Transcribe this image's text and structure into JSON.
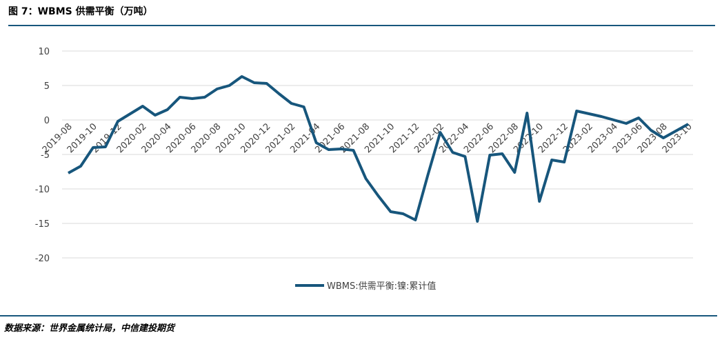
{
  "chart_data": {
    "type": "line",
    "title": "图 7：WBMS 供需平衡（万吨）",
    "categories": [
      "2019-08",
      null,
      "2019-10",
      null,
      "2019-12",
      null,
      "2020-02",
      null,
      "2020-04",
      null,
      "2020-06",
      null,
      "2020-08",
      null,
      "2020-10",
      null,
      "2020-12",
      null,
      "2021-02",
      null,
      "2021-04",
      null,
      "2021-06",
      null,
      "2021-08",
      null,
      "2021-10",
      null,
      "2021-12",
      null,
      "2022-02",
      null,
      "2022-04",
      null,
      "2022-06",
      null,
      "2022-08",
      null,
      "2022-10",
      null,
      "2022-12",
      null,
      "2023-02",
      null,
      "2023-04",
      null,
      "2023-06",
      null,
      "2023-08",
      null,
      "2023-10"
    ],
    "series": [
      {
        "name": "WBMS:供需平衡:镍:累计值",
        "color": "#17567c",
        "values": [
          -7.7,
          -6.7,
          -4.0,
          -3.9,
          -0.2,
          0.9,
          2.0,
          0.7,
          1.5,
          3.3,
          3.1,
          3.3,
          4.5,
          5.0,
          6.3,
          5.4,
          5.3,
          3.8,
          2.4,
          1.9,
          -3.3,
          -4.3,
          -4.2,
          -4.4,
          -8.5,
          -11.0,
          -13.3,
          -13.6,
          -14.5,
          -8.0,
          -1.8,
          -4.7,
          -5.3,
          -14.7,
          -5.1,
          -4.9,
          -7.6,
          1.0,
          -11.8,
          -5.8,
          -6.1,
          1.3,
          0.9,
          0.5,
          0.0,
          -0.5,
          0.3,
          -1.5,
          -2.6,
          -1.6,
          -0.6
        ]
      }
    ],
    "ylim": [
      -20,
      10
    ],
    "yticks": [
      10,
      5,
      0,
      -5,
      -10,
      -15,
      -20
    ],
    "grid": true,
    "legend": "bottom"
  },
  "source": "数据来源：世界金属统计局，中信建投期货"
}
